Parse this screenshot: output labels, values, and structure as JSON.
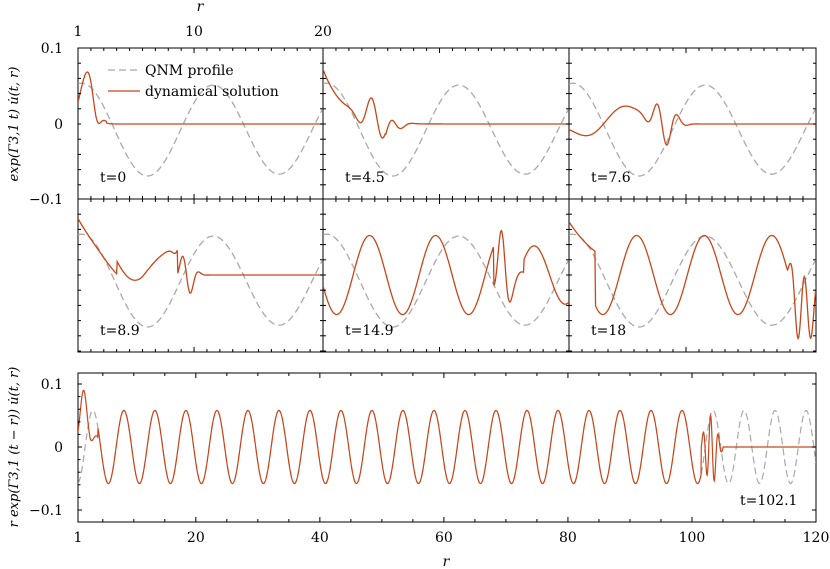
{
  "chart_data": {
    "type": "line",
    "colors": {
      "qnm": "#a9a9a9",
      "dyn": "#c8471a"
    },
    "top_axis": {
      "label": "r",
      "ticks": [
        1,
        10,
        20
      ],
      "range": [
        1,
        20
      ]
    },
    "upper_ylabel": "exp(Γ3,1 t) u̇(t, r)",
    "upper_yticks": [
      0.1,
      0,
      -0.1
    ],
    "upper_ylim": [
      -0.1,
      0.1
    ],
    "legend": {
      "entries": [
        "QNM profile",
        "dynamical solution"
      ],
      "placement": "top-left"
    },
    "panels": [
      {
        "label": "t=0"
      },
      {
        "label": "t=4.5"
      },
      {
        "label": "t=7.6"
      },
      {
        "label": "t=8.9"
      },
      {
        "label": "t=14.9"
      },
      {
        "label": "t=18"
      }
    ],
    "bottom": {
      "label": "t=102.1",
      "xlabel": "r",
      "ylabel": "r exp(Γ3,1 (t − r)) u̇(t, r)",
      "xticks": [
        1,
        20,
        40,
        60,
        80,
        100,
        120
      ],
      "xlim": [
        1,
        120
      ],
      "yticks": [
        0.1,
        0,
        -0.1
      ],
      "ylim": [
        -0.12,
        0.12
      ],
      "qnm_amplitude": 0.058,
      "qnm_period": 5.0,
      "front_r": 103.5
    }
  }
}
